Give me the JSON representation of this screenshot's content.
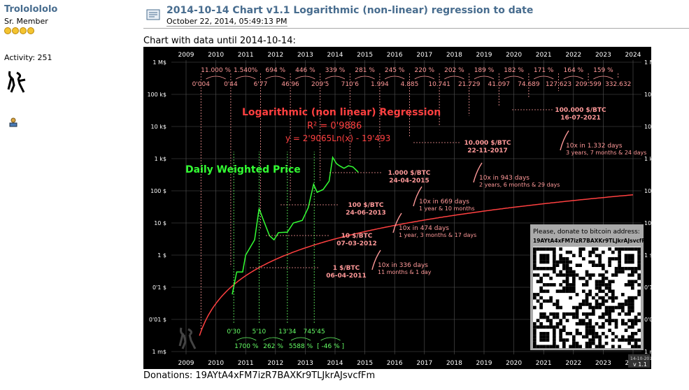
{
  "user": {
    "name": "Trololololo",
    "rank": "Sr. Member",
    "activity": "Activity: 251"
  },
  "post": {
    "title": "2014-10-14 Chart v1.1 Logarithmic (non-linear) regression to date",
    "date": "October 22, 2014, 05:49:13 PM",
    "intro": "Chart with data until 2014-10-14:",
    "donations": "Donations: 19AYtA4xFM7izR7BAXKr9TLJkrAJsvcfFm"
  },
  "chart_data": {
    "type": "line",
    "title": "Logarithmic (non linear) Regression",
    "r2": "R² = 0'9886",
    "formula": "y = 2'9065Ln(x) - 19'493",
    "price_label": "Daily Weighted Price",
    "x_ticks": [
      "2009",
      "2010",
      "2011",
      "2012",
      "2013",
      "2014",
      "2015",
      "2016",
      "2017",
      "2018",
      "2019",
      "2020",
      "2021",
      "2022",
      "2023",
      "2024"
    ],
    "y_ticks": [
      "1 M$",
      "100 k$",
      "10 k$",
      "1 k$",
      "100 $",
      "10 $",
      "1 $",
      "0'1 $",
      "0'01 $",
      "1 m$"
    ],
    "y_scale": "log",
    "ylim": [
      0.001,
      1000000
    ],
    "growth_pct": [
      "11.000 %",
      "1.540%",
      "694 %",
      "446 %",
      "339 %",
      "281 %",
      "245 %",
      "220 %",
      "202 %",
      "189 %",
      "182 %",
      "171 %",
      "164 %",
      "159 %"
    ],
    "reg_values": [
      "0'004",
      "0'44",
      "6'77",
      "46'96",
      "209'5",
      "710'6",
      "1.994",
      "4.885",
      "10.741",
      "21.729",
      "41.097",
      "74.689",
      "127.623",
      "209.599",
      "332.632"
    ],
    "price_values": [
      "0'30",
      "5'10",
      "13'34",
      "745'45"
    ],
    "price_growth": [
      "1700 %",
      "262 %",
      "5588 %",
      "[ -46 % ]"
    ],
    "milestones": [
      {
        "price": "1 $/BTC",
        "date": "06-04-2011",
        "gap": "10x in 336 days",
        "gap_detail": "11 months & 1 day"
      },
      {
        "price": "10 $/BTC",
        "date": "07-03-2012",
        "gap": "10x in 474 days",
        "gap_detail": "1 year, 3 months & 17 days"
      },
      {
        "price": "100 $/BTC",
        "date": "24-06-2013",
        "gap": "10x in 669 days",
        "gap_detail": "1 year & 10 months"
      },
      {
        "price": "1.000 $/BTC",
        "date": "24-04-2015",
        "gap": "10x in 943 days",
        "gap_detail": "2 years, 6 months & 29 days"
      },
      {
        "price": "10.000 $/BTC",
        "date": "22-11-2017",
        "gap": "10x in 1.332 days",
        "gap_detail": "3 years, 7 months & 24 days"
      },
      {
        "price": "100.000 $/BTC",
        "date": "16-07-2021"
      }
    ],
    "donate": {
      "heading": "Please, donate to bitcoin address:",
      "address": "19AYtA4xFM7izR7BAXKr9TLJkrAJsvcfFm"
    },
    "version_date": "14-10-2014",
    "version": "v 1.1",
    "colors": {
      "regression": "#ff4040",
      "price": "#33ff33",
      "annotation": "#ff9999",
      "growth": "#66ff66"
    }
  }
}
